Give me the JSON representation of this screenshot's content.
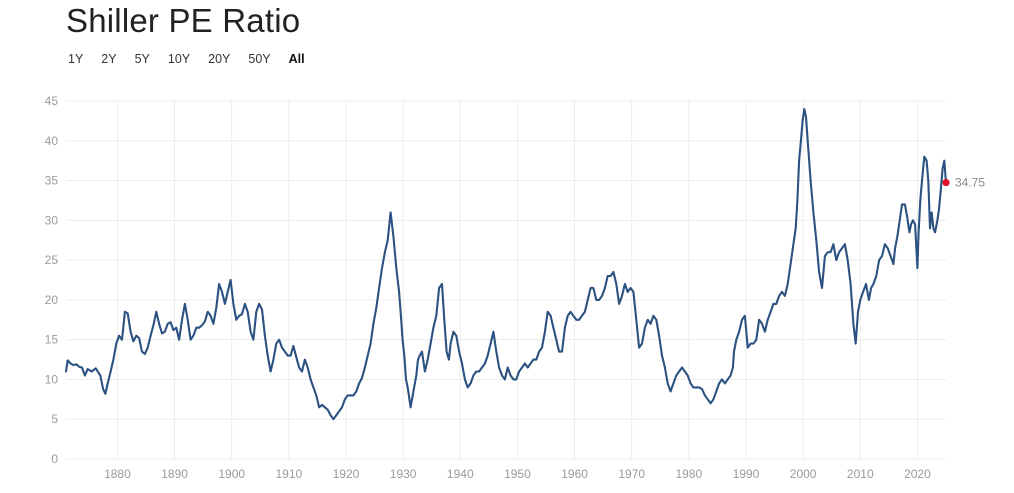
{
  "title": "Shiller PE Ratio",
  "ranges": {
    "items": [
      {
        "label": "1Y",
        "active": false
      },
      {
        "label": "2Y",
        "active": false
      },
      {
        "label": "5Y",
        "active": false
      },
      {
        "label": "10Y",
        "active": false
      },
      {
        "label": "20Y",
        "active": false
      },
      {
        "label": "50Y",
        "active": false
      },
      {
        "label": "All",
        "active": true
      }
    ]
  },
  "colors": {
    "line": "#2c5282",
    "marker": "#e0102a",
    "grid": "#ececec",
    "tick_text": "#9a9a9a"
  },
  "chart_data": {
    "type": "line",
    "title": "Shiller PE Ratio",
    "xlabel": "",
    "ylabel": "",
    "xlim": [
      1871,
      2025
    ],
    "ylim": [
      0,
      45
    ],
    "y_ticks": [
      0,
      5,
      10,
      15,
      20,
      25,
      30,
      35,
      40,
      45
    ],
    "x_ticks": [
      1880,
      1890,
      1900,
      1910,
      1920,
      1930,
      1940,
      1950,
      1960,
      1970,
      1980,
      1990,
      2000,
      2010,
      2020
    ],
    "grid": true,
    "end_label": "34.75",
    "series": [
      {
        "x": [
          1871.0,
          1871.3,
          1871.8,
          1872.3,
          1872.8,
          1873.3,
          1873.8,
          1874.3,
          1874.8,
          1875.5,
          1876.2,
          1877.0,
          1877.5,
          1877.9,
          1878.3,
          1878.8,
          1879.3,
          1879.8,
          1880.3,
          1880.8,
          1881.3,
          1881.8,
          1882.3,
          1882.8,
          1883.3,
          1883.8,
          1884.3,
          1884.8,
          1885.3,
          1885.8,
          1886.3,
          1886.8,
          1887.3,
          1887.8,
          1888.3,
          1888.8,
          1889.3,
          1889.8,
          1890.3,
          1890.8,
          1891.3,
          1891.8,
          1892.3,
          1892.8,
          1893.3,
          1893.8,
          1894.3,
          1894.8,
          1895.3,
          1895.8,
          1896.3,
          1896.8,
          1897.3,
          1897.8,
          1898.3,
          1898.8,
          1899.3,
          1899.8,
          1900.3,
          1900.8,
          1901.3,
          1901.8,
          1902.3,
          1902.8,
          1903.3,
          1903.8,
          1904.3,
          1904.8,
          1905.3,
          1905.8,
          1906.3,
          1906.8,
          1907.3,
          1907.8,
          1908.3,
          1908.8,
          1909.3,
          1909.8,
          1910.3,
          1910.8,
          1911.3,
          1911.8,
          1912.3,
          1912.8,
          1913.3,
          1913.8,
          1914.3,
          1914.8,
          1915.3,
          1915.8,
          1916.3,
          1916.8,
          1917.3,
          1917.8,
          1918.3,
          1918.8,
          1919.3,
          1919.8,
          1920.3,
          1920.8,
          1921.3,
          1921.8,
          1922.3,
          1922.8,
          1923.3,
          1923.8,
          1924.3,
          1924.8,
          1925.3,
          1925.8,
          1926.3,
          1926.8,
          1927.3,
          1927.8,
          1928.3,
          1928.8,
          1929.3,
          1929.6,
          1929.9,
          1930.2,
          1930.5,
          1930.8,
          1931.3,
          1931.8,
          1932.3,
          1932.6,
          1932.9,
          1933.3,
          1933.8,
          1934.3,
          1934.8,
          1935.3,
          1935.8,
          1936.3,
          1936.8,
          1937.2,
          1937.6,
          1938.0,
          1938.3,
          1938.8,
          1939.3,
          1939.8,
          1940.3,
          1940.8,
          1941.3,
          1941.8,
          1942.3,
          1942.8,
          1943.3,
          1943.8,
          1944.3,
          1944.8,
          1945.3,
          1945.8,
          1946.3,
          1946.8,
          1947.3,
          1947.8,
          1948.3,
          1948.8,
          1949.3,
          1949.8,
          1950.3,
          1950.8,
          1951.3,
          1951.8,
          1952.3,
          1952.8,
          1953.3,
          1953.8,
          1954.3,
          1954.8,
          1955.3,
          1955.8,
          1956.3,
          1956.8,
          1957.3,
          1957.8,
          1958.3,
          1958.8,
          1959.3,
          1959.8,
          1960.3,
          1960.8,
          1961.3,
          1961.8,
          1962.3,
          1962.8,
          1963.3,
          1963.8,
          1964.3,
          1964.8,
          1965.3,
          1965.8,
          1966.3,
          1966.8,
          1967.3,
          1967.8,
          1968.3,
          1968.8,
          1969.3,
          1969.8,
          1970.3,
          1970.8,
          1971.3,
          1971.8,
          1972.3,
          1972.8,
          1973.3,
          1973.8,
          1974.3,
          1974.8,
          1975.3,
          1975.8,
          1976.3,
          1976.8,
          1977.3,
          1977.8,
          1978.3,
          1978.8,
          1979.3,
          1979.8,
          1980.3,
          1980.8,
          1981.3,
          1981.8,
          1982.3,
          1982.8,
          1983.3,
          1983.8,
          1984.3,
          1984.8,
          1985.3,
          1985.8,
          1986.3,
          1986.8,
          1987.3,
          1987.7,
          1987.9,
          1988.3,
          1988.8,
          1989.3,
          1989.8,
          1990.3,
          1990.8,
          1991.3,
          1991.8,
          1992.3,
          1992.8,
          1993.3,
          1993.8,
          1994.3,
          1994.8,
          1995.3,
          1995.8,
          1996.3,
          1996.8,
          1997.3,
          1997.8,
          1998.3,
          1998.7,
          1999.0,
          1999.3,
          1999.6,
          1999.9,
          2000.2,
          2000.5,
          2000.8,
          2001.3,
          2001.8,
          2002.3,
          2002.8,
          2003.3,
          2003.8,
          2004.3,
          2004.8,
          2005.3,
          2005.8,
          2006.3,
          2006.8,
          2007.3,
          2007.8,
          2008.3,
          2008.8,
          2009.2,
          2009.6,
          2010.0,
          2010.5,
          2011.0,
          2011.5,
          2011.9,
          2012.3,
          2012.8,
          2013.3,
          2013.8,
          2014.3,
          2014.8,
          2015.3,
          2015.8,
          2016.1,
          2016.5,
          2016.9,
          2017.3,
          2017.8,
          2018.2,
          2018.6,
          2018.9,
          2019.2,
          2019.6,
          2020.0,
          2020.2,
          2020.5,
          2020.8,
          2021.2,
          2021.6,
          2021.9,
          2022.2,
          2022.5,
          2022.8,
          2023.1,
          2023.5,
          2023.8,
          2024.1,
          2024.4,
          2024.7,
          2025.0
        ],
        "y": [
          11.0,
          12.4,
          12.0,
          11.8,
          11.9,
          11.6,
          11.5,
          10.5,
          11.3,
          11.0,
          11.4,
          10.5,
          8.8,
          8.2,
          9.5,
          11.0,
          12.5,
          14.5,
          15.5,
          15.0,
          18.5,
          18.3,
          16.0,
          14.8,
          15.5,
          15.2,
          13.5,
          13.2,
          14.0,
          15.5,
          16.8,
          18.5,
          17.0,
          15.8,
          16.0,
          17.0,
          17.2,
          16.2,
          16.5,
          15.0,
          17.5,
          19.5,
          17.5,
          15.0,
          15.5,
          16.5,
          16.5,
          16.8,
          17.3,
          18.5,
          18.0,
          17.0,
          19.0,
          22.0,
          21.0,
          19.5,
          21.0,
          22.5,
          19.5,
          17.5,
          18.0,
          18.2,
          19.5,
          18.5,
          16.0,
          15.0,
          18.5,
          19.5,
          18.8,
          15.5,
          13.0,
          11.0,
          12.5,
          14.5,
          15.0,
          14.0,
          13.5,
          13.0,
          13.0,
          14.2,
          12.8,
          11.5,
          11.0,
          12.5,
          11.5,
          10.0,
          9.0,
          8.0,
          6.5,
          6.8,
          6.5,
          6.2,
          5.5,
          5.0,
          5.5,
          6.0,
          6.5,
          7.5,
          8.0,
          8.0,
          8.0,
          8.5,
          9.5,
          10.2,
          11.5,
          13.0,
          14.5,
          17.0,
          19.0,
          21.5,
          24.0,
          26.0,
          27.5,
          31.0,
          28.0,
          24.0,
          21.0,
          18.0,
          15.0,
          13.0,
          10.0,
          9.0,
          6.5,
          8.5,
          10.5,
          12.5,
          13.0,
          13.5,
          11.0,
          12.5,
          14.5,
          16.5,
          18.0,
          21.5,
          22.0,
          17.5,
          13.5,
          12.5,
          14.5,
          16.0,
          15.5,
          13.5,
          12.0,
          10.0,
          9.0,
          9.5,
          10.5,
          11.0,
          11.0,
          11.5,
          12.0,
          13.0,
          14.5,
          16.0,
          13.5,
          11.5,
          10.5,
          10.0,
          11.5,
          10.5,
          10.0,
          10.0,
          11.0,
          11.5,
          12.0,
          11.5,
          12.0,
          12.5,
          12.5,
          13.5,
          14.0,
          16.0,
          18.5,
          18.0,
          16.5,
          15.0,
          13.5,
          13.5,
          16.5,
          18.0,
          18.5,
          18.0,
          17.5,
          17.5,
          18.0,
          18.5,
          20.0,
          21.5,
          21.5,
          20.0,
          20.0,
          20.5,
          21.5,
          23.0,
          23.0,
          23.5,
          22.0,
          19.5,
          20.5,
          22.0,
          21.0,
          21.5,
          21.0,
          17.5,
          14.0,
          14.5,
          16.5,
          17.5,
          17.0,
          18.0,
          17.5,
          15.5,
          13.0,
          11.5,
          9.5,
          8.5,
          9.5,
          10.5,
          11.0,
          11.5,
          11.0,
          10.5,
          9.5,
          9.0,
          9.0,
          9.0,
          8.8,
          8.0,
          7.5,
          7.0,
          7.5,
          8.5,
          9.5,
          10.0,
          9.5,
          10.0,
          10.5,
          11.5,
          13.5,
          15.0,
          16.0,
          17.5,
          18.0,
          14.0,
          14.5,
          14.5,
          15.0,
          17.5,
          17.0,
          16.0,
          17.5,
          18.5,
          19.5,
          19.5,
          20.5,
          21.0,
          20.5,
          22.0,
          24.5,
          27.0,
          29.0,
          32.5,
          37.5,
          40.0,
          42.5,
          44.0,
          43.0,
          40.0,
          35.0,
          31.0,
          27.5,
          23.5,
          21.5,
          25.5,
          26.0,
          26.0,
          27.0,
          25.0,
          26.0,
          26.5,
          27.0,
          25.0,
          22.0,
          17.0,
          14.5,
          18.5,
          20.0,
          21.0,
          22.0,
          20.0,
          21.5,
          22.0,
          23.0,
          25.0,
          25.5,
          27.0,
          26.5,
          25.5,
          24.5,
          26.5,
          28.0,
          30.0,
          32.0,
          32.0,
          30.5,
          28.5,
          29.5,
          30.0,
          29.5,
          24.0,
          28.5,
          32.5,
          35.0,
          38.0,
          37.5,
          35.0,
          29.0,
          31.0,
          29.0,
          28.5,
          30.0,
          31.5,
          34.0,
          36.5,
          37.5,
          34.75
        ]
      }
    ]
  }
}
